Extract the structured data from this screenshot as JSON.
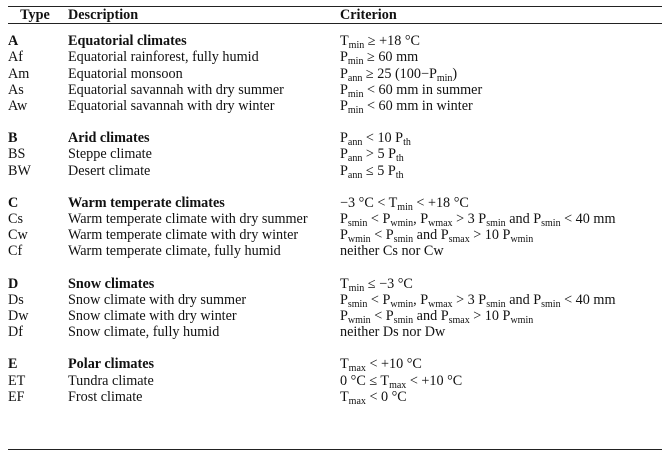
{
  "header": {
    "type": "Type",
    "description": "Description",
    "criterion": "Criterion"
  },
  "groups": [
    {
      "code": "A",
      "title": "Equatorial climates",
      "criterion": {
        "pre": "T",
        "sub": "min",
        "post": " ≥ +18 °C"
      },
      "rows": [
        {
          "code": "Af",
          "description": "Equatorial rainforest, fully humid",
          "criterion": {
            "pre": "P",
            "sub": "min",
            "post": " ≥ 60 mm"
          }
        },
        {
          "code": "Am",
          "description": "Equatorial monsoon",
          "criterion": {
            "pre": "P",
            "sub": "ann",
            "post": " ≥ 25 (100−P",
            "sub2": "min",
            "post2": ")"
          }
        },
        {
          "code": "As",
          "description": "Equatorial savannah with dry summer",
          "criterion": {
            "pre": "P",
            "sub": "min",
            "post": " < 60 mm in summer"
          }
        },
        {
          "code": "Aw",
          "description": "Equatorial savannah with dry winter",
          "criterion": {
            "pre": "P",
            "sub": "min",
            "post": " < 60 mm in winter"
          }
        }
      ]
    },
    {
      "code": "B",
      "title": "Arid climates",
      "criterion": {
        "pre": "P",
        "sub": "ann",
        "post": " < 10 P",
        "sub2": "th",
        "post2": ""
      },
      "rows": [
        {
          "code": "BS",
          "description": "Steppe climate",
          "criterion": {
            "pre": "P",
            "sub": "ann",
            "post": " > 5 P",
            "sub2": "th",
            "post2": ""
          }
        },
        {
          "code": "BW",
          "description": "Desert climate",
          "criterion": {
            "pre": "P",
            "sub": "ann",
            "post": " ≤ 5 P",
            "sub2": "th",
            "post2": ""
          }
        }
      ]
    },
    {
      "code": "C",
      "title": "Warm temperate climates",
      "criterion": {
        "pre": "−3 °C < T",
        "sub": "min",
        "post": " < +18 °C"
      },
      "rows": [
        {
          "code": "Cs",
          "description": "Warm temperate climate with dry summer",
          "criterion": {
            "pre": "P",
            "sub": "smin",
            "post": " < P",
            "sub2": "wmin",
            "post2": ", P",
            "sub3": "wmax",
            "post3": " > 3 P",
            "sub4": "smin",
            "post4": " and P",
            "sub5": "smin",
            "post5": " < 40 mm"
          }
        },
        {
          "code": "Cw",
          "description": "Warm temperate climate with dry winter",
          "criterion": {
            "pre": "P",
            "sub": "wmin",
            "post": " < P",
            "sub2": "smin",
            "post2": " and P",
            "sub3": "smax",
            "post3": " > 10 P",
            "sub4": "wmin",
            "post4": ""
          }
        },
        {
          "code": "Cf",
          "description": "Warm temperate climate, fully humid",
          "criterion": {
            "pre": "neither Cs nor Cw"
          }
        }
      ]
    },
    {
      "code": "D",
      "title": "Snow climates",
      "criterion": {
        "pre": "T",
        "sub": "min",
        "post": " ≤ −3 °C"
      },
      "rows": [
        {
          "code": "Ds",
          "description": "Snow climate with dry summer",
          "criterion": {
            "pre": "P",
            "sub": "smin",
            "post": " < P",
            "sub2": "wmin",
            "post2": ", P",
            "sub3": "wmax",
            "post3": " > 3 P",
            "sub4": "smin",
            "post4": " and P",
            "sub5": "smin",
            "post5": " < 40 mm"
          }
        },
        {
          "code": "Dw",
          "description": "Snow climate with dry winter",
          "criterion": {
            "pre": "P",
            "sub": "wmin",
            "post": " < P",
            "sub2": "smin",
            "post2": " and P",
            "sub3": "smax",
            "post3": " > 10 P",
            "sub4": "wmin",
            "post4": ""
          }
        },
        {
          "code": "Df",
          "description": "Snow climate, fully humid",
          "criterion": {
            "pre": "neither Ds nor Dw"
          }
        }
      ]
    },
    {
      "code": "E",
      "title": "Polar climates",
      "criterion": {
        "pre": "T",
        "sub": "max",
        "post": " < +10 °C"
      },
      "rows": [
        {
          "code": "ET",
          "description": "Tundra climate",
          "criterion": {
            "pre": "0 °C ≤ T",
            "sub": "max",
            "post": " < +10 °C"
          }
        },
        {
          "code": "EF",
          "description": "Frost climate",
          "criterion": {
            "pre": "T",
            "sub": "max",
            "post": " < 0 °C"
          }
        }
      ]
    }
  ]
}
